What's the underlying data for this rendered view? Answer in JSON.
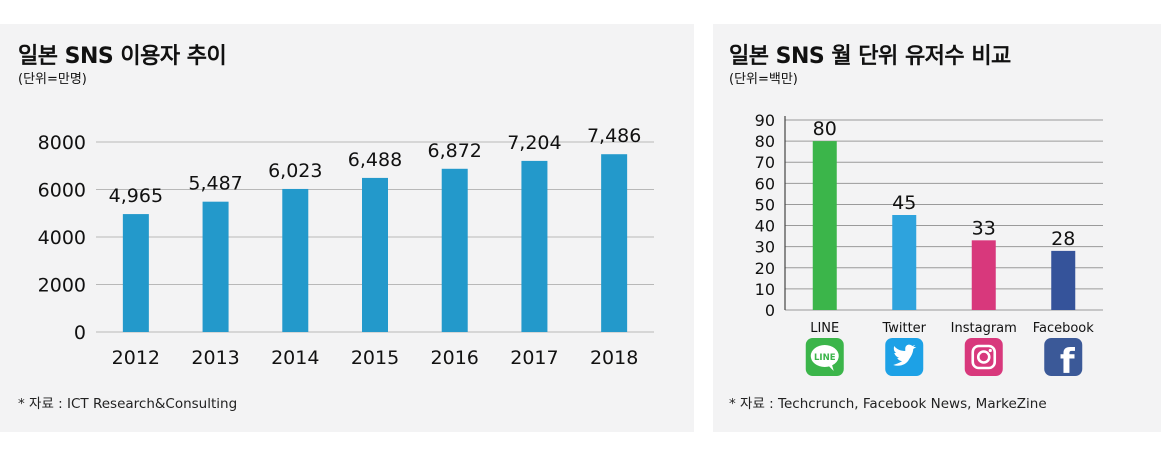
{
  "chart_data": [
    {
      "type": "bar",
      "title": "일본 SNS 이용자 추이",
      "unit_label": "(단위=만명)",
      "categories": [
        "2012",
        "2013",
        "2014",
        "2015",
        "2016",
        "2017",
        "2018"
      ],
      "values": [
        4965,
        5487,
        6023,
        6488,
        6872,
        7204,
        7486
      ],
      "value_labels": [
        "4,965",
        "5,487",
        "6,023",
        "6,488",
        "6,872",
        "7,204",
        "7,486"
      ],
      "y_ticks": [
        "0",
        "2000",
        "4000",
        "6000",
        "8000"
      ],
      "ylim": [
        0,
        8000
      ],
      "grid": true,
      "bar_color": "#2399cb",
      "source": "* 자료 : ICT Research&Consulting"
    },
    {
      "type": "bar",
      "title": "일본 SNS 월 단위 유저수 비교",
      "unit_label": "(단위=백만)",
      "categories": [
        "LINE",
        "Twitter",
        "Instagram",
        "Facebook"
      ],
      "values": [
        80,
        45,
        33,
        28
      ],
      "value_labels": [
        "80",
        "45",
        "33",
        "28"
      ],
      "y_ticks": [
        "0",
        "10",
        "20",
        "30",
        "40",
        "50",
        "60",
        "70",
        "80",
        "90"
      ],
      "ylim": [
        0,
        90
      ],
      "grid": true,
      "bar_colors": [
        "#3bb54a",
        "#2ea3dd",
        "#d8387c",
        "#35539a"
      ],
      "icons": [
        {
          "name": "line-icon",
          "color": "#3bb54a",
          "text": "LINE"
        },
        {
          "name": "twitter-icon",
          "color": "#1da1e6"
        },
        {
          "name": "instagram-icon",
          "color": "#d8387c"
        },
        {
          "name": "facebook-icon",
          "color": "#3b5998",
          "text": "f"
        }
      ],
      "source": "* 자료 : Techcrunch, Facebook News, MarkeZine"
    }
  ]
}
